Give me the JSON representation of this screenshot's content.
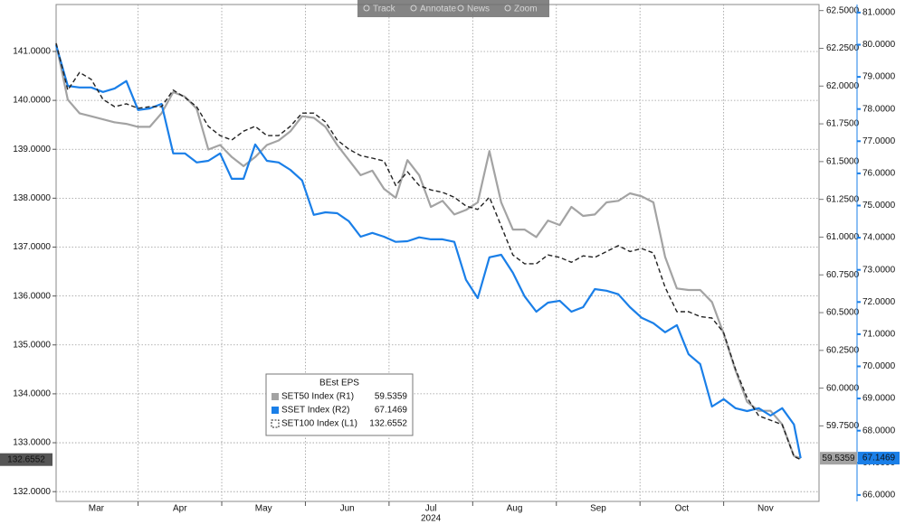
{
  "toolbar": [
    "Track",
    "Annotate",
    "News",
    "Zoom"
  ],
  "chart_data": {
    "type": "line",
    "xlabel": "2024",
    "x": [
      3.02,
      3.16,
      3.3,
      3.44,
      3.58,
      3.72,
      3.86,
      4.0,
      4.14,
      4.28,
      4.42,
      4.56,
      4.7,
      4.84,
      4.98,
      5.12,
      5.26,
      5.4,
      5.54,
      5.68,
      5.82,
      5.96,
      6.1,
      6.24,
      6.38,
      6.52,
      6.66,
      6.8,
      6.94,
      7.08,
      7.22,
      7.36,
      7.5,
      7.64,
      7.78,
      7.92,
      8.06,
      8.2,
      8.34,
      8.48,
      8.62,
      8.76,
      8.9,
      9.04,
      9.18,
      9.32,
      9.46,
      9.6,
      9.74,
      9.88,
      10.02,
      10.16,
      10.3,
      10.44,
      10.58,
      10.72,
      10.86,
      11.0,
      11.14,
      11.28,
      11.42,
      11.56,
      11.7,
      11.84,
      11.92
    ],
    "xlim": [
      3.02,
      12.14
    ],
    "xticks": [
      {
        "value": 3,
        "label": "Mar"
      },
      {
        "value": 4,
        "label": "Apr"
      },
      {
        "value": 5,
        "label": "May"
      },
      {
        "value": 6,
        "label": "Jun"
      },
      {
        "value": 7,
        "label": "Jul"
      },
      {
        "value": 8,
        "label": "Aug"
      },
      {
        "value": 9,
        "label": "Sep"
      },
      {
        "value": 10,
        "label": "Oct"
      },
      {
        "value": 11,
        "label": "Nov"
      }
    ],
    "ylim": [
      131.8,
      141.96
    ],
    "yticks": [
      {
        "value": 132,
        "label": "132.0000"
      },
      {
        "value": 133,
        "label": "133.0000"
      },
      {
        "value": 134,
        "label": "134.0000"
      },
      {
        "value": 135,
        "label": "135.0000"
      },
      {
        "value": 136,
        "label": "136.0000"
      },
      {
        "value": 137,
        "label": "137.0000"
      },
      {
        "value": 138,
        "label": "138.0000"
      },
      {
        "value": 139,
        "label": "139.0000"
      },
      {
        "value": 140,
        "label": "140.0000"
      },
      {
        "value": 141,
        "label": "141.0000"
      }
    ],
    "y2lim": [
      59.25,
      62.54
    ],
    "y2ticks": [
      {
        "value": 59.75,
        "label": "59.7500"
      },
      {
        "value": 60,
        "label": "60.0000"
      },
      {
        "value": 60.25,
        "label": "60.2500"
      },
      {
        "value": 60.5,
        "label": "60.5000"
      },
      {
        "value": 60.75,
        "label": "60.7500"
      },
      {
        "value": 61,
        "label": "61.0000"
      },
      {
        "value": 61.25,
        "label": "61.2500"
      },
      {
        "value": 61.5,
        "label": "61.5000"
      },
      {
        "value": 61.75,
        "label": "61.7500"
      },
      {
        "value": 62,
        "label": "62.0000"
      },
      {
        "value": 62.25,
        "label": "62.2500"
      },
      {
        "value": 62.5,
        "label": "62.5000"
      }
    ],
    "y3lim": [
      65.8,
      81.25
    ],
    "y3ticks": [
      {
        "value": 66,
        "label": "66.0000"
      },
      {
        "value": 67,
        "label": "67.0000"
      },
      {
        "value": 68,
        "label": "68.0000"
      },
      {
        "value": 69,
        "label": "69.0000"
      },
      {
        "value": 70,
        "label": "70.0000"
      },
      {
        "value": 71,
        "label": "71.0000"
      },
      {
        "value": 72,
        "label": "72.0000"
      },
      {
        "value": 73,
        "label": "73.0000"
      },
      {
        "value": 74,
        "label": "74.0000"
      },
      {
        "value": 75,
        "label": "75.0000"
      },
      {
        "value": 76,
        "label": "76.0000"
      },
      {
        "value": 77,
        "label": "77.0000"
      },
      {
        "value": 78,
        "label": "78.0000"
      },
      {
        "value": 79,
        "label": "79.0000"
      },
      {
        "value": 80,
        "label": "80.0000"
      },
      {
        "value": 81,
        "label": "81.0000"
      }
    ],
    "grid": true,
    "legend_title": "BEst EPS",
    "series": [
      {
        "name": "SET50 Index  (R1)",
        "color": "#a3a3a3",
        "axis": "y2",
        "values": [
          62.28,
          61.91,
          61.82,
          61.8,
          61.78,
          61.76,
          61.75,
          61.73,
          61.73,
          61.82,
          61.96,
          61.93,
          61.85,
          61.58,
          61.61,
          61.53,
          61.47,
          61.53,
          61.61,
          61.64,
          61.7,
          61.8,
          61.79,
          61.73,
          61.61,
          61.51,
          61.41,
          61.44,
          61.32,
          61.26,
          61.51,
          61.41,
          61.2,
          61.24,
          61.15,
          61.18,
          61.23,
          61.57,
          61.23,
          61.05,
          61.05,
          61.0,
          61.11,
          61.08,
          61.2,
          61.14,
          61.15,
          61.23,
          61.24,
          61.29,
          61.27,
          61.23,
          60.87,
          60.66,
          60.65,
          60.65,
          60.57,
          60.36,
          60.12,
          59.91,
          59.85,
          59.85,
          59.76,
          59.55,
          59.5359
        ]
      },
      {
        "name": "SSET Index  (R2)",
        "color": "#1a7fe8",
        "axis": "y3",
        "values": [
          79.99,
          78.72,
          78.67,
          78.67,
          78.53,
          78.64,
          78.87,
          77.97,
          78.02,
          78.16,
          76.62,
          76.62,
          76.34,
          76.39,
          76.62,
          75.83,
          75.83,
          76.9,
          76.39,
          76.34,
          76.11,
          75.78,
          74.71,
          74.79,
          74.76,
          74.51,
          74.03,
          74.15,
          74.03,
          73.87,
          73.89,
          74.01,
          73.95,
          73.95,
          73.87,
          72.69,
          72.12,
          73.39,
          73.47,
          72.91,
          72.18,
          71.7,
          71.98,
          72.04,
          71.7,
          71.84,
          72.4,
          72.35,
          72.24,
          71.84,
          71.51,
          71.34,
          71.06,
          71.28,
          70.38,
          70.07,
          68.75,
          68.98,
          68.7,
          68.61,
          68.7,
          68.47,
          68.7,
          68.19,
          67.1469
        ]
      },
      {
        "name": "SET100 Index  (L1)",
        "color": "#222222",
        "axis": "y",
        "dash": true,
        "values": [
          141.17,
          140.21,
          140.57,
          140.43,
          140.02,
          139.87,
          139.93,
          139.84,
          139.87,
          139.87,
          140.21,
          140.06,
          139.87,
          139.47,
          139.28,
          139.19,
          139.37,
          139.47,
          139.28,
          139.28,
          139.47,
          139.74,
          139.74,
          139.56,
          139.19,
          139.0,
          138.87,
          138.82,
          138.76,
          138.26,
          138.54,
          138.26,
          138.17,
          138.12,
          138.02,
          137.84,
          137.77,
          138.02,
          137.43,
          136.84,
          136.66,
          136.66,
          136.84,
          136.79,
          136.69,
          136.82,
          136.79,
          136.91,
          137.03,
          136.91,
          136.97,
          136.88,
          136.18,
          135.68,
          135.68,
          135.58,
          135.55,
          135.25,
          134.51,
          133.92,
          133.55,
          133.46,
          133.37,
          132.72,
          132.6552
        ]
      }
    ]
  }
}
